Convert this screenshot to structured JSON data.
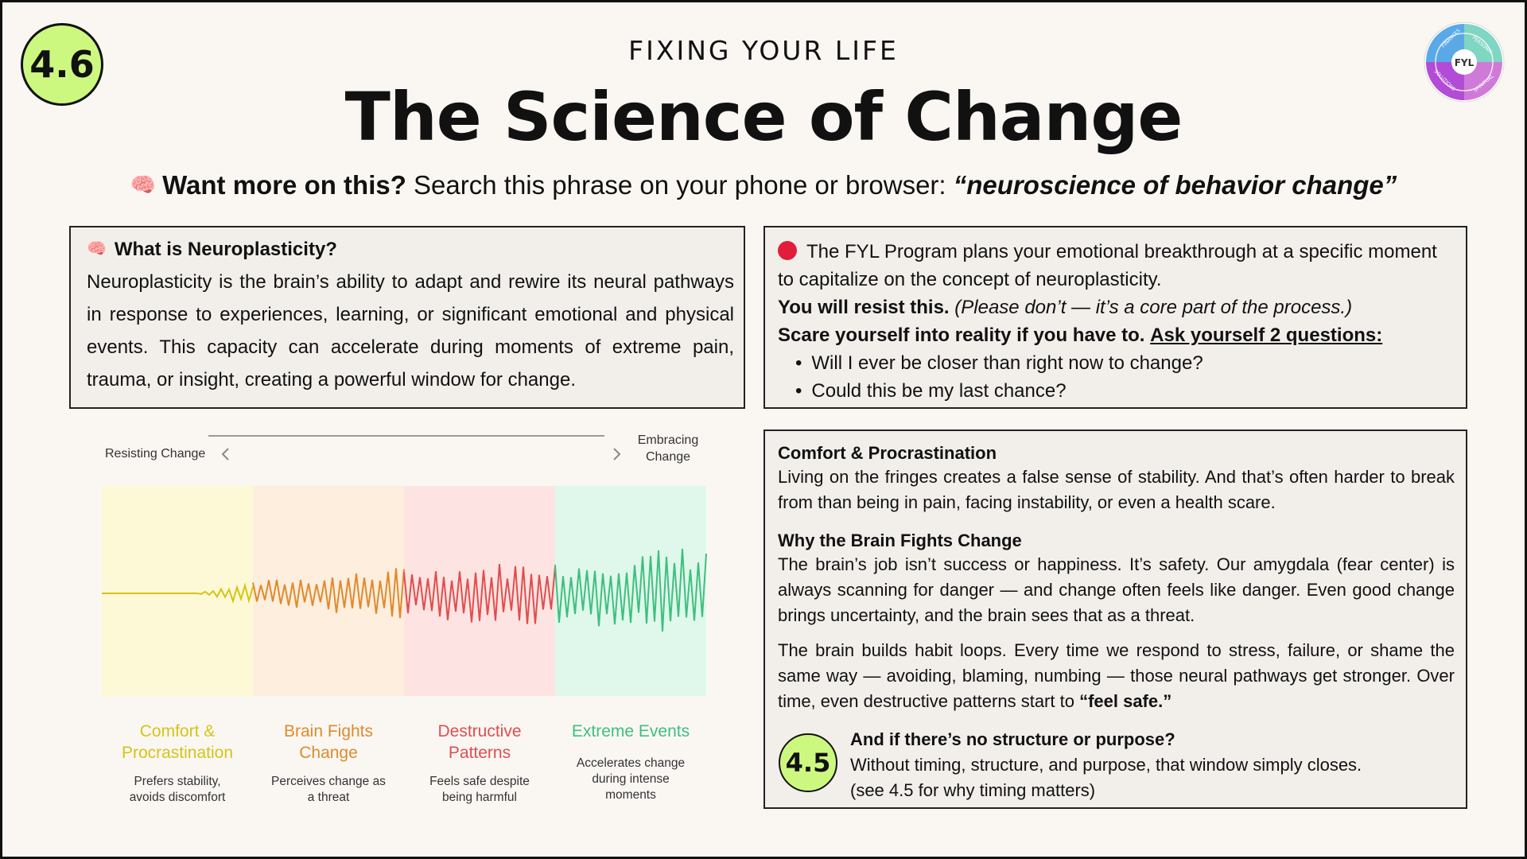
{
  "section_number": "4.6",
  "eyebrow": "FIXING YOUR LIFE",
  "title": "The Science of Change",
  "logo": {
    "text": "FYL",
    "ring_labels": [
      "FINANCES",
      "PERSONAL",
      "SOLUTIONS",
      "SPIRITUAL"
    ],
    "colors": [
      "#5aa9e6",
      "#7fd6c2",
      "#b24bd6",
      "#d07ad8"
    ]
  },
  "search": {
    "icon": "brain-icon",
    "lead": "Want more on this?",
    "text": " Search this phrase on your phone or browser: ",
    "phrase": "“neuroscience of behavior change”"
  },
  "neuro": {
    "icon": "brain-icon",
    "heading": "What is Neuroplasticity?",
    "body": "Neuroplasticity is the brain’s ability to adapt and rewire its neural pathways in response to experiences, learning, or significant emotional and physical events. This capacity can accelerate during moments of extreme pain, trauma, or insight, creating a powerful window for change."
  },
  "fyl": {
    "intro": "The FYL Program plans your emotional breakthrough at a specific moment to capitalize on the concept of neuroplasticity.",
    "resist_bold": "You will resist this.",
    "resist_italic": " (Please don’t — it’s a core part of the process.)",
    "scare_bold": "Scare yourself into reality if you have to.",
    "questions_label": "Ask yourself 2 questions:",
    "questions": [
      "Will I ever be closer than right now to change?",
      "Could this be my last chance?"
    ]
  },
  "chart_data": {
    "type": "area",
    "axis_left": "Resisting Change",
    "axis_right": "Embracing Change",
    "zones": [
      {
        "title": "Comfort & Procrastination",
        "desc": "Prefers stability, avoids discomfort",
        "color": "#d4c417",
        "bg": "#fdf8d5"
      },
      {
        "title": "Brain Fights Change",
        "desc": "Perceives change as a threat",
        "color": "#e08a2c",
        "bg": "#fdeede"
      },
      {
        "title": "Destructive Patterns",
        "desc": "Feels safe despite being harmful",
        "color": "#e04e4e",
        "bg": "#fde4e2"
      },
      {
        "title": "Extreme Events",
        "desc": "Accelerates change during intense moments",
        "color": "#3fbf7f",
        "bg": "#dff8eb"
      }
    ]
  },
  "comfort": {
    "h1": "Comfort & Procrastination",
    "p1": "Living on the fringes creates a false sense of stability. And that’s often harder to break from than being in pain, facing instability, or even a health scare.",
    "h2": "Why the Brain Fights Change",
    "p2": "The brain’s job isn’t success or happiness. It’s safety. Our amygdala (fear center) is always scanning for danger — and change often feels like danger. Even good change brings uncertainty, and the brain sees that as a threat.",
    "p3_text": "The brain builds habit loops. Every time we respond to stress, failure, or shame the same way — avoiding, blaming, numbing — those neural pathways get stronger. Over time, even destructive patterns start to ",
    "p3_bold": "“feel safe.”",
    "ref_badge": "4.5",
    "ref_heading": "And if there’s no structure or purpose?",
    "ref_line1": "Without timing, structure, and purpose, that window simply closes.",
    "ref_line2": "(see 4.5 for why timing matters)"
  }
}
